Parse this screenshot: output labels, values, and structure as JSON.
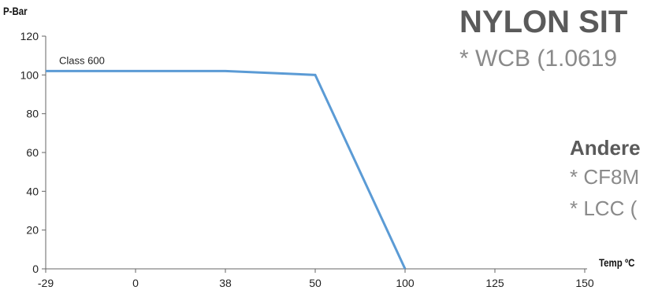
{
  "chart_data": {
    "type": "line",
    "ylabel": "P-Bar",
    "xlabel": "Temp ºC",
    "x_categories": [
      "-29",
      "0",
      "38",
      "50",
      "100",
      "125",
      "150"
    ],
    "yticks": [
      0,
      20,
      40,
      60,
      80,
      100,
      120
    ],
    "ylim": [
      0,
      120
    ],
    "grid": false,
    "series": [
      {
        "name": "Class 600",
        "x": [
          "-29",
          "38",
          "50",
          "100"
        ],
        "y": [
          102,
          102,
          100,
          0
        ],
        "color": "#5b9bd5"
      }
    ]
  },
  "overlay": {
    "title": "NYLON SIT",
    "subtitle": "* WCB (1.0619",
    "heading": "Andere",
    "items": [
      "* CF8M",
      "* LCC ("
    ]
  }
}
